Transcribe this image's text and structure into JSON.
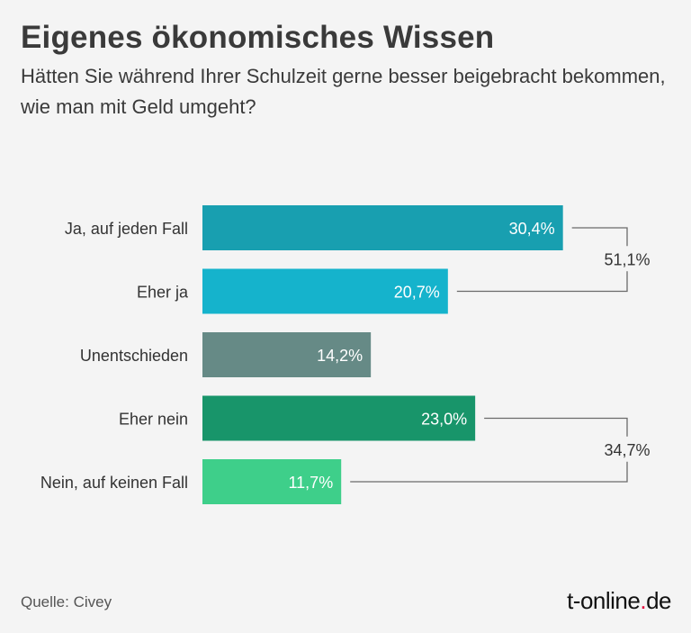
{
  "header": {
    "title": "Eigenes ökonomisches Wissen",
    "subtitle": "Hätten Sie während Ihrer Schulzeit gerne besser beigebracht bekommen, wie man mit Geld umgeht?"
  },
  "footer": {
    "source": "Quelle: Civey",
    "logo_pre": "t-online",
    "logo_dot": ".",
    "logo_post": "de"
  },
  "chart_data": {
    "type": "bar",
    "orientation": "horizontal",
    "title": "Eigenes ökonomisches Wissen",
    "categories": [
      "Ja, auf jeden Fall",
      "Eher ja",
      "Unentschieden",
      "Eher nein",
      "Nein, auf keinen Fall"
    ],
    "values": [
      30.4,
      20.7,
      14.2,
      23.0,
      11.7
    ],
    "value_labels": [
      "30,4%",
      "20,7%",
      "14,2%",
      "23,0%",
      "11,7%"
    ],
    "colors": [
      "#189fb0",
      "#15b3cc",
      "#668a86",
      "#18956a",
      "#3ecf8a"
    ],
    "groups": [
      {
        "label": "51,1%",
        "value": 51.1,
        "members": [
          0,
          1
        ]
      },
      {
        "label": "34,7%",
        "value": 34.7,
        "members": [
          3,
          4
        ]
      }
    ],
    "xlabel": "",
    "ylabel": "",
    "grid": false
  }
}
